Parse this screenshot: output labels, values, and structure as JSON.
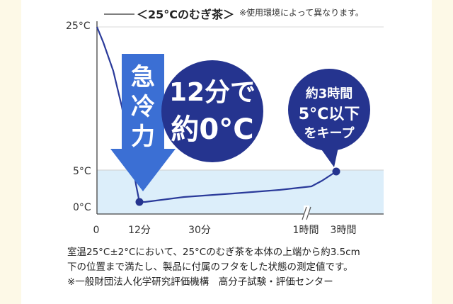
{
  "chart_data": {
    "type": "line",
    "title": "＜25°Cのむぎ茶＞",
    "annotation_top": "※使用環境によって異なります。",
    "y_ticks": [
      "25°C",
      "5°C",
      "0°C"
    ],
    "x_ticks": [
      "0",
      "12分",
      "30分",
      "1時間",
      "3時間"
    ],
    "series": [
      {
        "x": [
          "0分",
          "12分",
          "30分",
          "1時間",
          "3時間"
        ],
        "y": [
          25,
          0,
          1,
          1.5,
          5
        ]
      }
    ],
    "ylim": [
      0,
      25
    ],
    "band_range": [
      0,
      5
    ],
    "axis_break": "1時間",
    "arrow_label": [
      "急",
      "冷",
      "力"
    ],
    "bubble_1": {
      "lines": [
        "12分で",
        "約0°C"
      ]
    },
    "bubble_2": {
      "lines": [
        "約3時間",
        "5°C以下",
        "をキープ"
      ]
    },
    "colors": {
      "line": "#2a3a9a",
      "arrow": "#3b6fd4",
      "bubble": "#25348f",
      "band": "#dceefa",
      "grid": "#d8d8d8"
    }
  },
  "footnote": {
    "line1": "室温25°C±2°Cにおいて、25°Cのむぎ茶を本体の上端から約3.5cm",
    "line2": "下の位置まで満たし、製品に付属のフタをした状態の測定値です。",
    "line3": "※一般財団法人化学研究評価機構　高分子試験・評価センター"
  }
}
